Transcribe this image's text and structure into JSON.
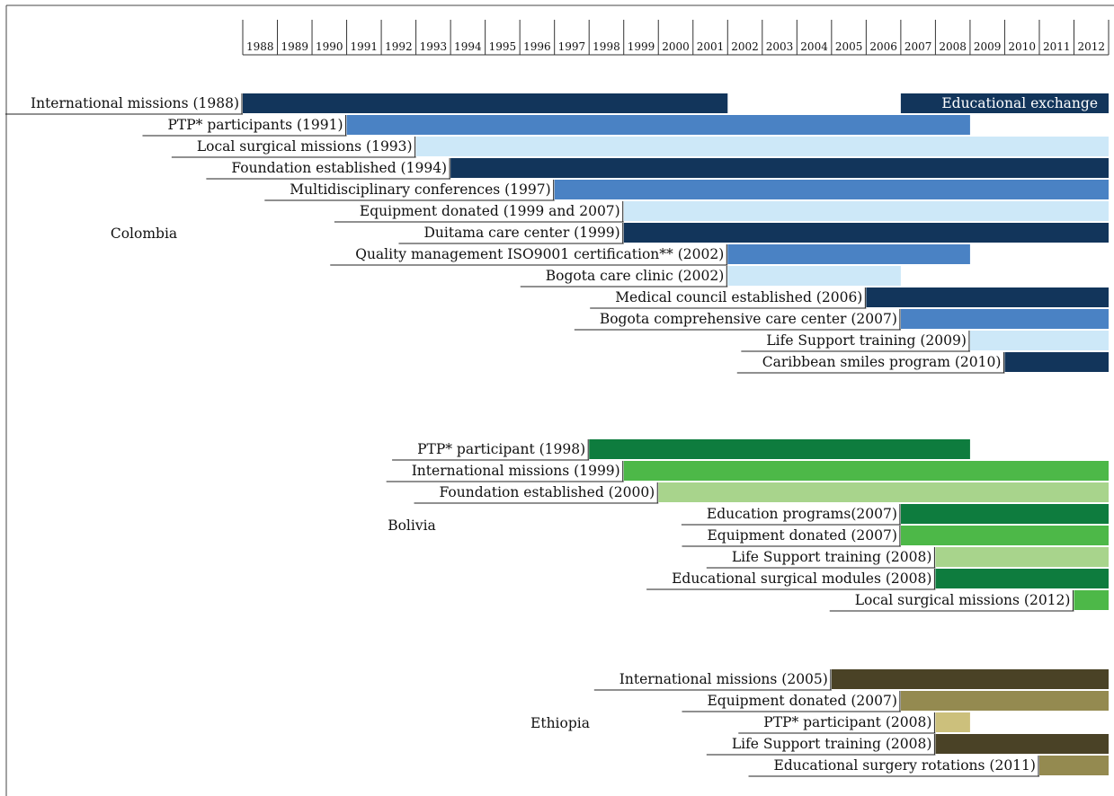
{
  "header_caption": "",
  "chart_data": {
    "type": "bar",
    "subtype": "gantt-timeline",
    "x_axis": {
      "years": [
        1988,
        1989,
        1990,
        1991,
        1992,
        1993,
        1994,
        1995,
        1996,
        1997,
        1998,
        1999,
        2000,
        2001,
        2002,
        2003,
        2004,
        2005,
        2006,
        2007,
        2008,
        2009,
        2010,
        2011,
        2012
      ],
      "range": [
        1988,
        2013
      ]
    },
    "groups": [
      {
        "country": "Colombia",
        "palette": [
          "#12355b",
          "#4a82c4",
          "#cde8f8"
        ],
        "bars": [
          {
            "label": "International missions (1988)",
            "start": 1988,
            "end": 2002,
            "shade": 0
          },
          {
            "label": "PTP* participants (1991)",
            "start": 1991,
            "end": 2009,
            "shade": 1
          },
          {
            "label": "Local surgical missions (1993)",
            "start": 1993,
            "end": 2013,
            "shade": 2
          },
          {
            "label": "Foundation established (1994)",
            "start": 1994,
            "end": 2013,
            "shade": 0
          },
          {
            "label": "Multidisciplinary conferences (1997)",
            "start": 1997,
            "end": 2013,
            "shade": 1
          },
          {
            "label": "Equipment donated (1999 and 2007)",
            "start": 1999,
            "end": 2013,
            "shade": 2
          },
          {
            "label": "Duitama care center (1999)",
            "start": 1999,
            "end": 2013,
            "shade": 0
          },
          {
            "label": "Quality management ISO9001 certification** (2002)",
            "start": 2002,
            "end": 2009,
            "shade": 1
          },
          {
            "label": "Bogota care clinic (2002)",
            "start": 2002,
            "end": 2007,
            "shade": 2
          },
          {
            "label": "Medical council established (2006)",
            "start": 2006,
            "end": 2013,
            "shade": 0
          },
          {
            "label": "Bogota comprehensive care center (2007)",
            "start": 2007,
            "end": 2013,
            "shade": 1
          },
          {
            "label": "Life Support training (2009)",
            "start": 2009,
            "end": 2013,
            "shade": 2
          },
          {
            "label": "Caribbean smiles program (2010)",
            "start": 2010,
            "end": 2013,
            "shade": 0
          }
        ],
        "extra_bars": [
          {
            "label": "Educational exchange",
            "start": 2007,
            "end": 2013,
            "row": 0,
            "shade": 0
          }
        ]
      },
      {
        "country": "Bolivia",
        "palette": [
          "#0e7c3e",
          "#4db848",
          "#a8d48c"
        ],
        "bars": [
          {
            "label": "PTP* participant (1998)",
            "start": 1998,
            "end": 2009,
            "shade": 0
          },
          {
            "label": "International missions (1999)",
            "start": 1999,
            "end": 2013,
            "shade": 1
          },
          {
            "label": "Foundation established (2000)",
            "start": 2000,
            "end": 2013,
            "shade": 2
          },
          {
            "label": "Education programs(2007)",
            "start": 2007,
            "end": 2013,
            "shade": 0
          },
          {
            "label": "Equipment donated (2007)",
            "start": 2007,
            "end": 2013,
            "shade": 1
          },
          {
            "label": "Life Support training (2008)",
            "start": 2008,
            "end": 2013,
            "shade": 2
          },
          {
            "label": "Educational surgical modules (2008)",
            "start": 2008,
            "end": 2013,
            "shade": 0
          },
          {
            "label": "Local surgical missions (2012)",
            "start": 2012,
            "end": 2013,
            "shade": 1
          }
        ]
      },
      {
        "country": "Ethiopia",
        "palette": [
          "#4a4226",
          "#948a50",
          "#ccc07c"
        ],
        "bars": [
          {
            "label": "International missions (2005)",
            "start": 2005,
            "end": 2013,
            "shade": 0
          },
          {
            "label": "Equipment donated (2007)",
            "start": 2007,
            "end": 2013,
            "shade": 1
          },
          {
            "label": "PTP* participant (2008)",
            "start": 2008,
            "end": 2009,
            "shade": 2
          },
          {
            "label": "Life Support training (2008)",
            "start": 2008,
            "end": 2013,
            "shade": 0
          },
          {
            "label": "Educational surgery rotations (2011)",
            "start": 2011,
            "end": 2013,
            "shade": 1
          }
        ]
      }
    ]
  }
}
